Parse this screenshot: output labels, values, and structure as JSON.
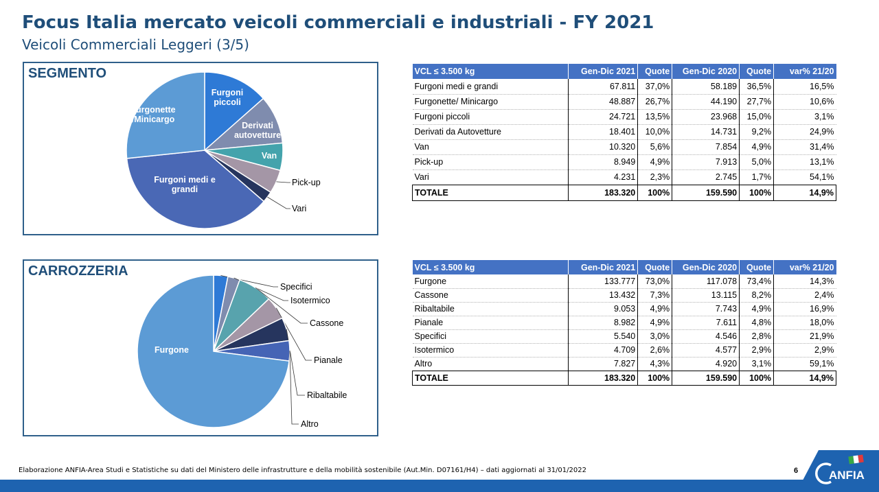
{
  "header": {
    "title": "Focus Italia mercato veicoli commerciali e industriali - FY 2021",
    "subtitle": "Veicoli Commerciali Leggeri (3/5)"
  },
  "segmento": {
    "panel_title": "SEGMENTO",
    "table": {
      "headers": [
        "VCL ≤ 3.500 kg",
        "Gen-Dic 2021",
        "Quote",
        "Gen-Dic 2020",
        "Quote",
        "var% 21/20"
      ],
      "rows": [
        [
          "Furgoni medi e grandi",
          "67.811",
          "37,0%",
          "58.189",
          "36,5%",
          "16,5%"
        ],
        [
          "Furgonette/ Minicargo",
          "48.887",
          "26,7%",
          "44.190",
          "27,7%",
          "10,6%"
        ],
        [
          "Furgoni piccoli",
          "24.721",
          "13,5%",
          "23.968",
          "15,0%",
          "3,1%"
        ],
        [
          "Derivati da Autovetture",
          "18.401",
          "10,0%",
          "14.731",
          "9,2%",
          "24,9%"
        ],
        [
          "Van",
          "10.320",
          "5,6%",
          "7.854",
          "4,9%",
          "31,4%"
        ],
        [
          "Pick-up",
          "8.949",
          "4,9%",
          "7.913",
          "5,0%",
          "13,1%"
        ],
        [
          "Vari",
          "4.231",
          "2,3%",
          "2.745",
          "1,7%",
          "54,1%"
        ]
      ],
      "total": [
        "TOTALE",
        "183.320",
        "100%",
        "159.590",
        "100%",
        "14,9%"
      ]
    }
  },
  "carrozzeria": {
    "panel_title": "CARROZZERIA",
    "table": {
      "headers": [
        "VCL ≤ 3.500 kg",
        "Gen-Dic 2021",
        "Quote",
        "Gen-Dic 2020",
        "Quote",
        "var% 21/20"
      ],
      "rows": [
        [
          "Furgone",
          "133.777",
          "73,0%",
          "117.078",
          "73,4%",
          "14,3%"
        ],
        [
          "Cassone",
          "13.432",
          "7,3%",
          "13.115",
          "8,2%",
          "2,4%"
        ],
        [
          "Ribaltabile",
          "9.053",
          "4,9%",
          "7.743",
          "4,9%",
          "16,9%"
        ],
        [
          "Pianale",
          "8.982",
          "4,9%",
          "7.611",
          "4,8%",
          "18,0%"
        ],
        [
          "Specifici",
          "5.540",
          "3,0%",
          "4.546",
          "2,8%",
          "21,9%"
        ],
        [
          "Isotermico",
          "4.709",
          "2,6%",
          "4.577",
          "2,9%",
          "2,9%"
        ],
        [
          "Altro",
          "7.827",
          "4,3%",
          "4.920",
          "3,1%",
          "59,1%"
        ]
      ],
      "total": [
        "TOTALE",
        "183.320",
        "100%",
        "159.590",
        "100%",
        "14,9%"
      ]
    }
  },
  "chart_data": [
    {
      "type": "pie",
      "title": "SEGMENTO",
      "slices": [
        {
          "label": "Furgoni piccoli",
          "display_label": "Furgoni\npiccoli",
          "value": 24721,
          "color": "#2e7ad6"
        },
        {
          "label": "Derivati autovetture",
          "display_label": "Derivati\nautovetture",
          "value": 18401,
          "color": "#7f8cae"
        },
        {
          "label": "Van",
          "display_label": "Van",
          "value": 10320,
          "color": "#44a3ac"
        },
        {
          "label": "Pick-up",
          "display_label": "Pick-up",
          "value": 8949,
          "color": "#a496a6"
        },
        {
          "label": "Vari",
          "display_label": "Vari",
          "value": 4231,
          "color": "#26355e"
        },
        {
          "label": "Furgoni medi e grandi",
          "display_label": "Furgoni medi e\ngrandi",
          "value": 67811,
          "color": "#4a68b5"
        },
        {
          "label": "Furgonette /Minicargo",
          "display_label": "Furgonette\n/Minicargo",
          "value": 48887,
          "color": "#5c9bd5"
        }
      ]
    },
    {
      "type": "pie",
      "title": "CARROZZERIA",
      "slices": [
        {
          "label": "Specifici",
          "display_label": "Specifici",
          "value": 5540,
          "color": "#2e7ad6"
        },
        {
          "label": "Isotermico",
          "display_label": "Isotermico",
          "value": 4709,
          "color": "#7f8cae"
        },
        {
          "label": "Cassone",
          "display_label": "Cassone",
          "value": 13432,
          "color": "#58a3ad"
        },
        {
          "label": "Pianale",
          "display_label": "Pianale",
          "value": 8982,
          "color": "#a496a6"
        },
        {
          "label": "Ribaltabile",
          "display_label": "Ribaltabile",
          "value": 9053,
          "color": "#26355e"
        },
        {
          "label": "Altro",
          "display_label": "Altro",
          "value": 7827,
          "color": "#4564b5"
        },
        {
          "label": "Furgone",
          "display_label": "Furgone",
          "value": 133777,
          "color": "#5c9bd5"
        }
      ]
    }
  ],
  "footer": {
    "note": "Elaborazione ANFIA-Area Studi e Statistiche su dati del Ministero delle infrastrutture e della mobilità sostenibile (Aut.Min. D07161/H4) – dati aggiornati al 31/01/2022",
    "page_number": "6",
    "logo_text": "ANFIA"
  },
  "colors": {
    "brand": "#1f4e79",
    "table_header": "#4472c4",
    "bar": "#1e63b0"
  }
}
